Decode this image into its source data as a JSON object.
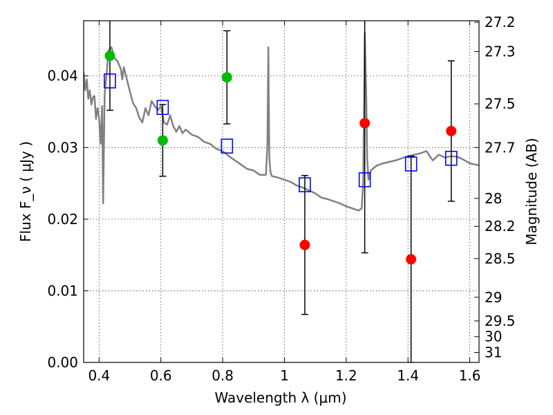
{
  "chart_data": {
    "type": "scatter",
    "xlabel": "Wavelength  λ (μm)",
    "ylabel": "Flux  F_ν  ( μJy )",
    "y2label": "Magnitude (AB)",
    "xlim": [
      0.35,
      1.63
    ],
    "ylim": [
      0.0,
      0.0477
    ],
    "x_ticks": [
      0.4,
      0.6,
      0.8,
      1.0,
      1.2,
      1.4,
      1.6
    ],
    "x_tick_labels": [
      "0.4",
      "0.6",
      "0.8",
      "1",
      "1.2",
      "1.4",
      "1.6"
    ],
    "y_ticks": [
      0.0,
      0.01,
      0.02,
      0.03,
      0.04
    ],
    "y_tick_labels": [
      "0.00",
      "0.01",
      "0.02",
      "0.03",
      "0.04"
    ],
    "y2_ticks": [
      {
        "label": "27.2",
        "flux": 0.0475
      },
      {
        "label": "27.3",
        "flux": 0.0434
      },
      {
        "label": "27.5",
        "flux": 0.0361
      },
      {
        "label": "27.7",
        "flux": 0.03
      },
      {
        "label": "28",
        "flux": 0.0229
      },
      {
        "label": "28.2",
        "flux": 0.019
      },
      {
        "label": "28.5",
        "flux": 0.0145
      },
      {
        "label": "29",
        "flux": 0.0091
      },
      {
        "label": "29.5",
        "flux": 0.0058
      },
      {
        "label": "30",
        "flux": 0.0036
      },
      {
        "label": "31",
        "flux": 0.0014
      }
    ],
    "grid": true,
    "colors": {
      "detected": "#00bb00",
      "undetected": "#ff0000",
      "model": "#0000ff",
      "spectrum": "#808080",
      "errorbar": "#000000"
    },
    "series": [
      {
        "kind": "green-points",
        "color": "#00bb00",
        "points": [
          {
            "x": 0.435,
            "y": 0.0428,
            "err": 0.0076
          },
          {
            "x": 0.606,
            "y": 0.031,
            "err": 0.005
          },
          {
            "x": 0.814,
            "y": 0.0398,
            "err": 0.0065
          }
        ]
      },
      {
        "kind": "red-points",
        "color": "#ff0000",
        "points": [
          {
            "x": 1.066,
            "y": 0.0164,
            "err": 0.0097
          },
          {
            "x": 1.26,
            "y": 0.0334,
            "err": 0.0181
          },
          {
            "x": 1.41,
            "y": 0.0144,
            "err": 0.0144
          },
          {
            "x": 1.54,
            "y": 0.0323,
            "err": 0.0098
          }
        ]
      },
      {
        "kind": "model-squares",
        "color": "#0000ff",
        "points": [
          {
            "x": 0.435,
            "y": 0.0393
          },
          {
            "x": 0.606,
            "y": 0.0356
          },
          {
            "x": 0.814,
            "y": 0.0302
          },
          {
            "x": 1.066,
            "y": 0.0248
          },
          {
            "x": 1.26,
            "y": 0.0255
          },
          {
            "x": 1.41,
            "y": 0.0277
          },
          {
            "x": 1.54,
            "y": 0.0285
          }
        ]
      },
      {
        "kind": "spectrum",
        "color": "#808080",
        "x": [
          0.35,
          0.355,
          0.36,
          0.365,
          0.37,
          0.375,
          0.38,
          0.385,
          0.39,
          0.395,
          0.4,
          0.405,
          0.41,
          0.413,
          0.418,
          0.425,
          0.43,
          0.44,
          0.45,
          0.46,
          0.47,
          0.475,
          0.48,
          0.49,
          0.5,
          0.51,
          0.52,
          0.53,
          0.54,
          0.55,
          0.56,
          0.57,
          0.58,
          0.59,
          0.6,
          0.61,
          0.62,
          0.63,
          0.64,
          0.65,
          0.66,
          0.67,
          0.68,
          0.7,
          0.72,
          0.74,
          0.76,
          0.78,
          0.8,
          0.82,
          0.84,
          0.86,
          0.88,
          0.9,
          0.92,
          0.94,
          0.945,
          0.948,
          0.951,
          0.955,
          0.96,
          0.98,
          1.0,
          1.02,
          1.04,
          1.06,
          1.08,
          1.1,
          1.12,
          1.14,
          1.16,
          1.18,
          1.2,
          1.22,
          1.24,
          1.25,
          1.255,
          1.26,
          1.265,
          1.268,
          1.272,
          1.28,
          1.29,
          1.3,
          1.32,
          1.34,
          1.36,
          1.38,
          1.4,
          1.42,
          1.44,
          1.46,
          1.48,
          1.5,
          1.52,
          1.54,
          1.56,
          1.58,
          1.6,
          1.63
        ],
        "y": [
          0.0405,
          0.038,
          0.0395,
          0.0368,
          0.038,
          0.036,
          0.037,
          0.0372,
          0.034,
          0.0355,
          0.0342,
          0.0305,
          0.0358,
          0.0222,
          0.0375,
          0.0405,
          0.0435,
          0.044,
          0.0425,
          0.042,
          0.041,
          0.0395,
          0.0412,
          0.0395,
          0.0378,
          0.0362,
          0.0355,
          0.0342,
          0.0335,
          0.0355,
          0.0345,
          0.0365,
          0.0358,
          0.0352,
          0.0358,
          0.0335,
          0.0332,
          0.0345,
          0.033,
          0.0322,
          0.033,
          0.032,
          0.0325,
          0.0318,
          0.0315,
          0.0308,
          0.0305,
          0.0298,
          0.0295,
          0.0288,
          0.0282,
          0.0276,
          0.027,
          0.0268,
          0.0262,
          0.0262,
          0.0305,
          0.044,
          0.0285,
          0.0265,
          0.026,
          0.0258,
          0.0255,
          0.0252,
          0.0247,
          0.0244,
          0.024,
          0.0236,
          0.023,
          0.0228,
          0.0225,
          0.0222,
          0.0218,
          0.0215,
          0.0212,
          0.0215,
          0.025,
          0.046,
          0.037,
          0.0285,
          0.0255,
          0.0268,
          0.0272,
          0.0275,
          0.0278,
          0.028,
          0.0282,
          0.0285,
          0.0288,
          0.029,
          0.0292,
          0.0295,
          0.0282,
          0.029,
          0.0286,
          0.0288,
          0.0287,
          0.0283,
          0.0278,
          0.0275
        ]
      }
    ]
  }
}
